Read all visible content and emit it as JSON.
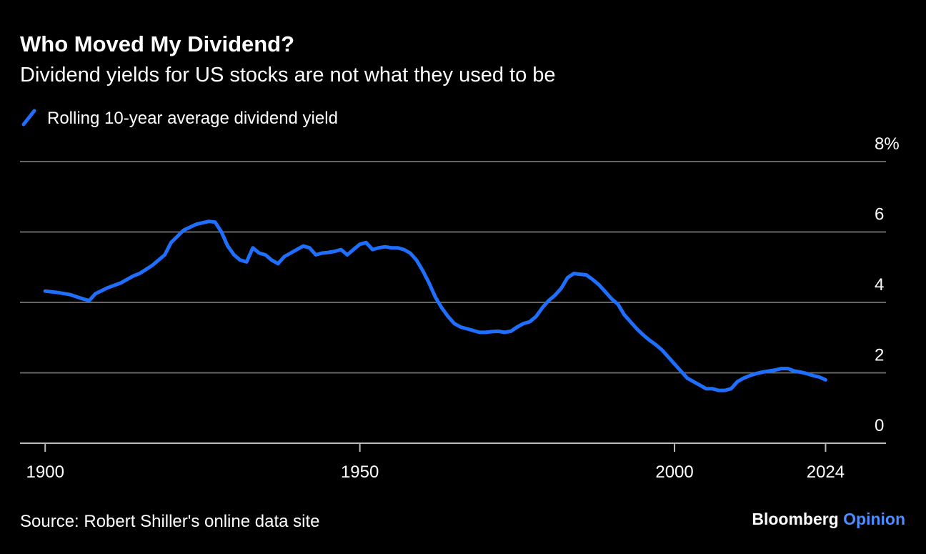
{
  "chart_data": {
    "type": "line",
    "title": "Who Moved My Dividend?",
    "subtitle": "Dividend yields for US stocks are not what they used to be",
    "source": "Source: Robert Shiller's online data site",
    "brand": {
      "name": "Bloomberg",
      "section": "Opinion"
    },
    "x": [
      1900,
      1902,
      1904,
      1906,
      1907,
      1908,
      1910,
      1912,
      1914,
      1915,
      1917,
      1919,
      1920,
      1922,
      1924,
      1926,
      1927,
      1928,
      1929,
      1930,
      1931,
      1932,
      1933,
      1934,
      1935,
      1936,
      1937,
      1938,
      1939,
      1940,
      1941,
      1942,
      1943,
      1944,
      1945,
      1946,
      1947,
      1948,
      1949,
      1950,
      1951,
      1952,
      1953,
      1954,
      1955,
      1956,
      1957,
      1958,
      1959,
      1960,
      1961,
      1962,
      1963,
      1964,
      1965,
      1966,
      1967,
      1968,
      1969,
      1970,
      1971,
      1972,
      1973,
      1974,
      1975,
      1976,
      1977,
      1978,
      1979,
      1980,
      1981,
      1982,
      1983,
      1984,
      1985,
      1986,
      1987,
      1988,
      1989,
      1990,
      1991,
      1992,
      1993,
      1994,
      1995,
      1996,
      1997,
      1998,
      1999,
      2000,
      2001,
      2002,
      2003,
      2004,
      2005,
      2006,
      2007,
      2008,
      2009,
      2010,
      2011,
      2012,
      2013,
      2014,
      2015,
      2016,
      2017,
      2018,
      2019,
      2020,
      2021,
      2022,
      2023,
      2024
    ],
    "series": [
      {
        "name": "Rolling 10-year average dividend yield",
        "color": "#1f6fff",
        "values": [
          4.32,
          4.28,
          4.22,
          4.1,
          4.05,
          4.25,
          4.42,
          4.55,
          4.75,
          4.82,
          5.05,
          5.35,
          5.7,
          6.05,
          6.22,
          6.3,
          6.28,
          6.0,
          5.6,
          5.35,
          5.2,
          5.15,
          5.55,
          5.4,
          5.35,
          5.2,
          5.1,
          5.3,
          5.4,
          5.5,
          5.6,
          5.55,
          5.35,
          5.4,
          5.42,
          5.45,
          5.5,
          5.35,
          5.5,
          5.65,
          5.7,
          5.5,
          5.55,
          5.58,
          5.55,
          5.55,
          5.5,
          5.4,
          5.2,
          4.9,
          4.55,
          4.15,
          3.85,
          3.6,
          3.4,
          3.3,
          3.25,
          3.2,
          3.15,
          3.15,
          3.17,
          3.18,
          3.15,
          3.18,
          3.3,
          3.4,
          3.45,
          3.6,
          3.85,
          4.05,
          4.2,
          4.4,
          4.7,
          4.82,
          4.8,
          4.78,
          4.65,
          4.5,
          4.3,
          4.1,
          3.95,
          3.65,
          3.45,
          3.25,
          3.08,
          2.93,
          2.8,
          2.65,
          2.45,
          2.25,
          2.05,
          1.85,
          1.75,
          1.65,
          1.55,
          1.55,
          1.5,
          1.5,
          1.55,
          1.75,
          1.85,
          1.92,
          1.98,
          2.02,
          2.05,
          2.08,
          2.12,
          2.12,
          2.05,
          2.02,
          1.98,
          1.92,
          1.88,
          1.8
        ]
      }
    ],
    "xlim": [
      1896,
      2033.6
    ],
    "xticks": [
      1900,
      1950,
      2000,
      2024
    ],
    "ylim": [
      0,
      8
    ],
    "yticks": [
      0,
      2,
      4,
      6,
      {
        "value": 8,
        "label": "8%"
      }
    ],
    "grid": true
  }
}
